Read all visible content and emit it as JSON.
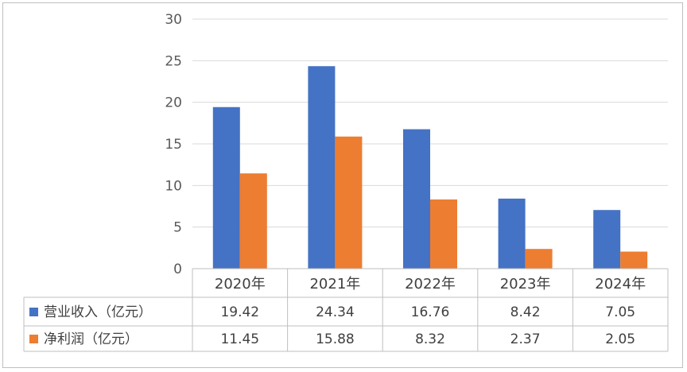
{
  "chart_data": {
    "type": "bar",
    "title": "",
    "xlabel": "",
    "ylabel": "",
    "categories": [
      "2020年",
      "2021年",
      "2022年",
      "2023年",
      "2024年"
    ],
    "series": [
      {
        "name": "营业收入（亿元）",
        "values": [
          19.42,
          24.34,
          16.76,
          8.42,
          7.05
        ],
        "color": "#4472c4"
      },
      {
        "name": "净利润（亿元）",
        "values": [
          11.45,
          15.88,
          8.32,
          2.37,
          2.05
        ],
        "color": "#ed7d31"
      }
    ],
    "ylim": [
      0,
      30
    ],
    "yticks": [
      0,
      5,
      10,
      15,
      20,
      25,
      30
    ],
    "grid": true,
    "legend": "data-table"
  }
}
